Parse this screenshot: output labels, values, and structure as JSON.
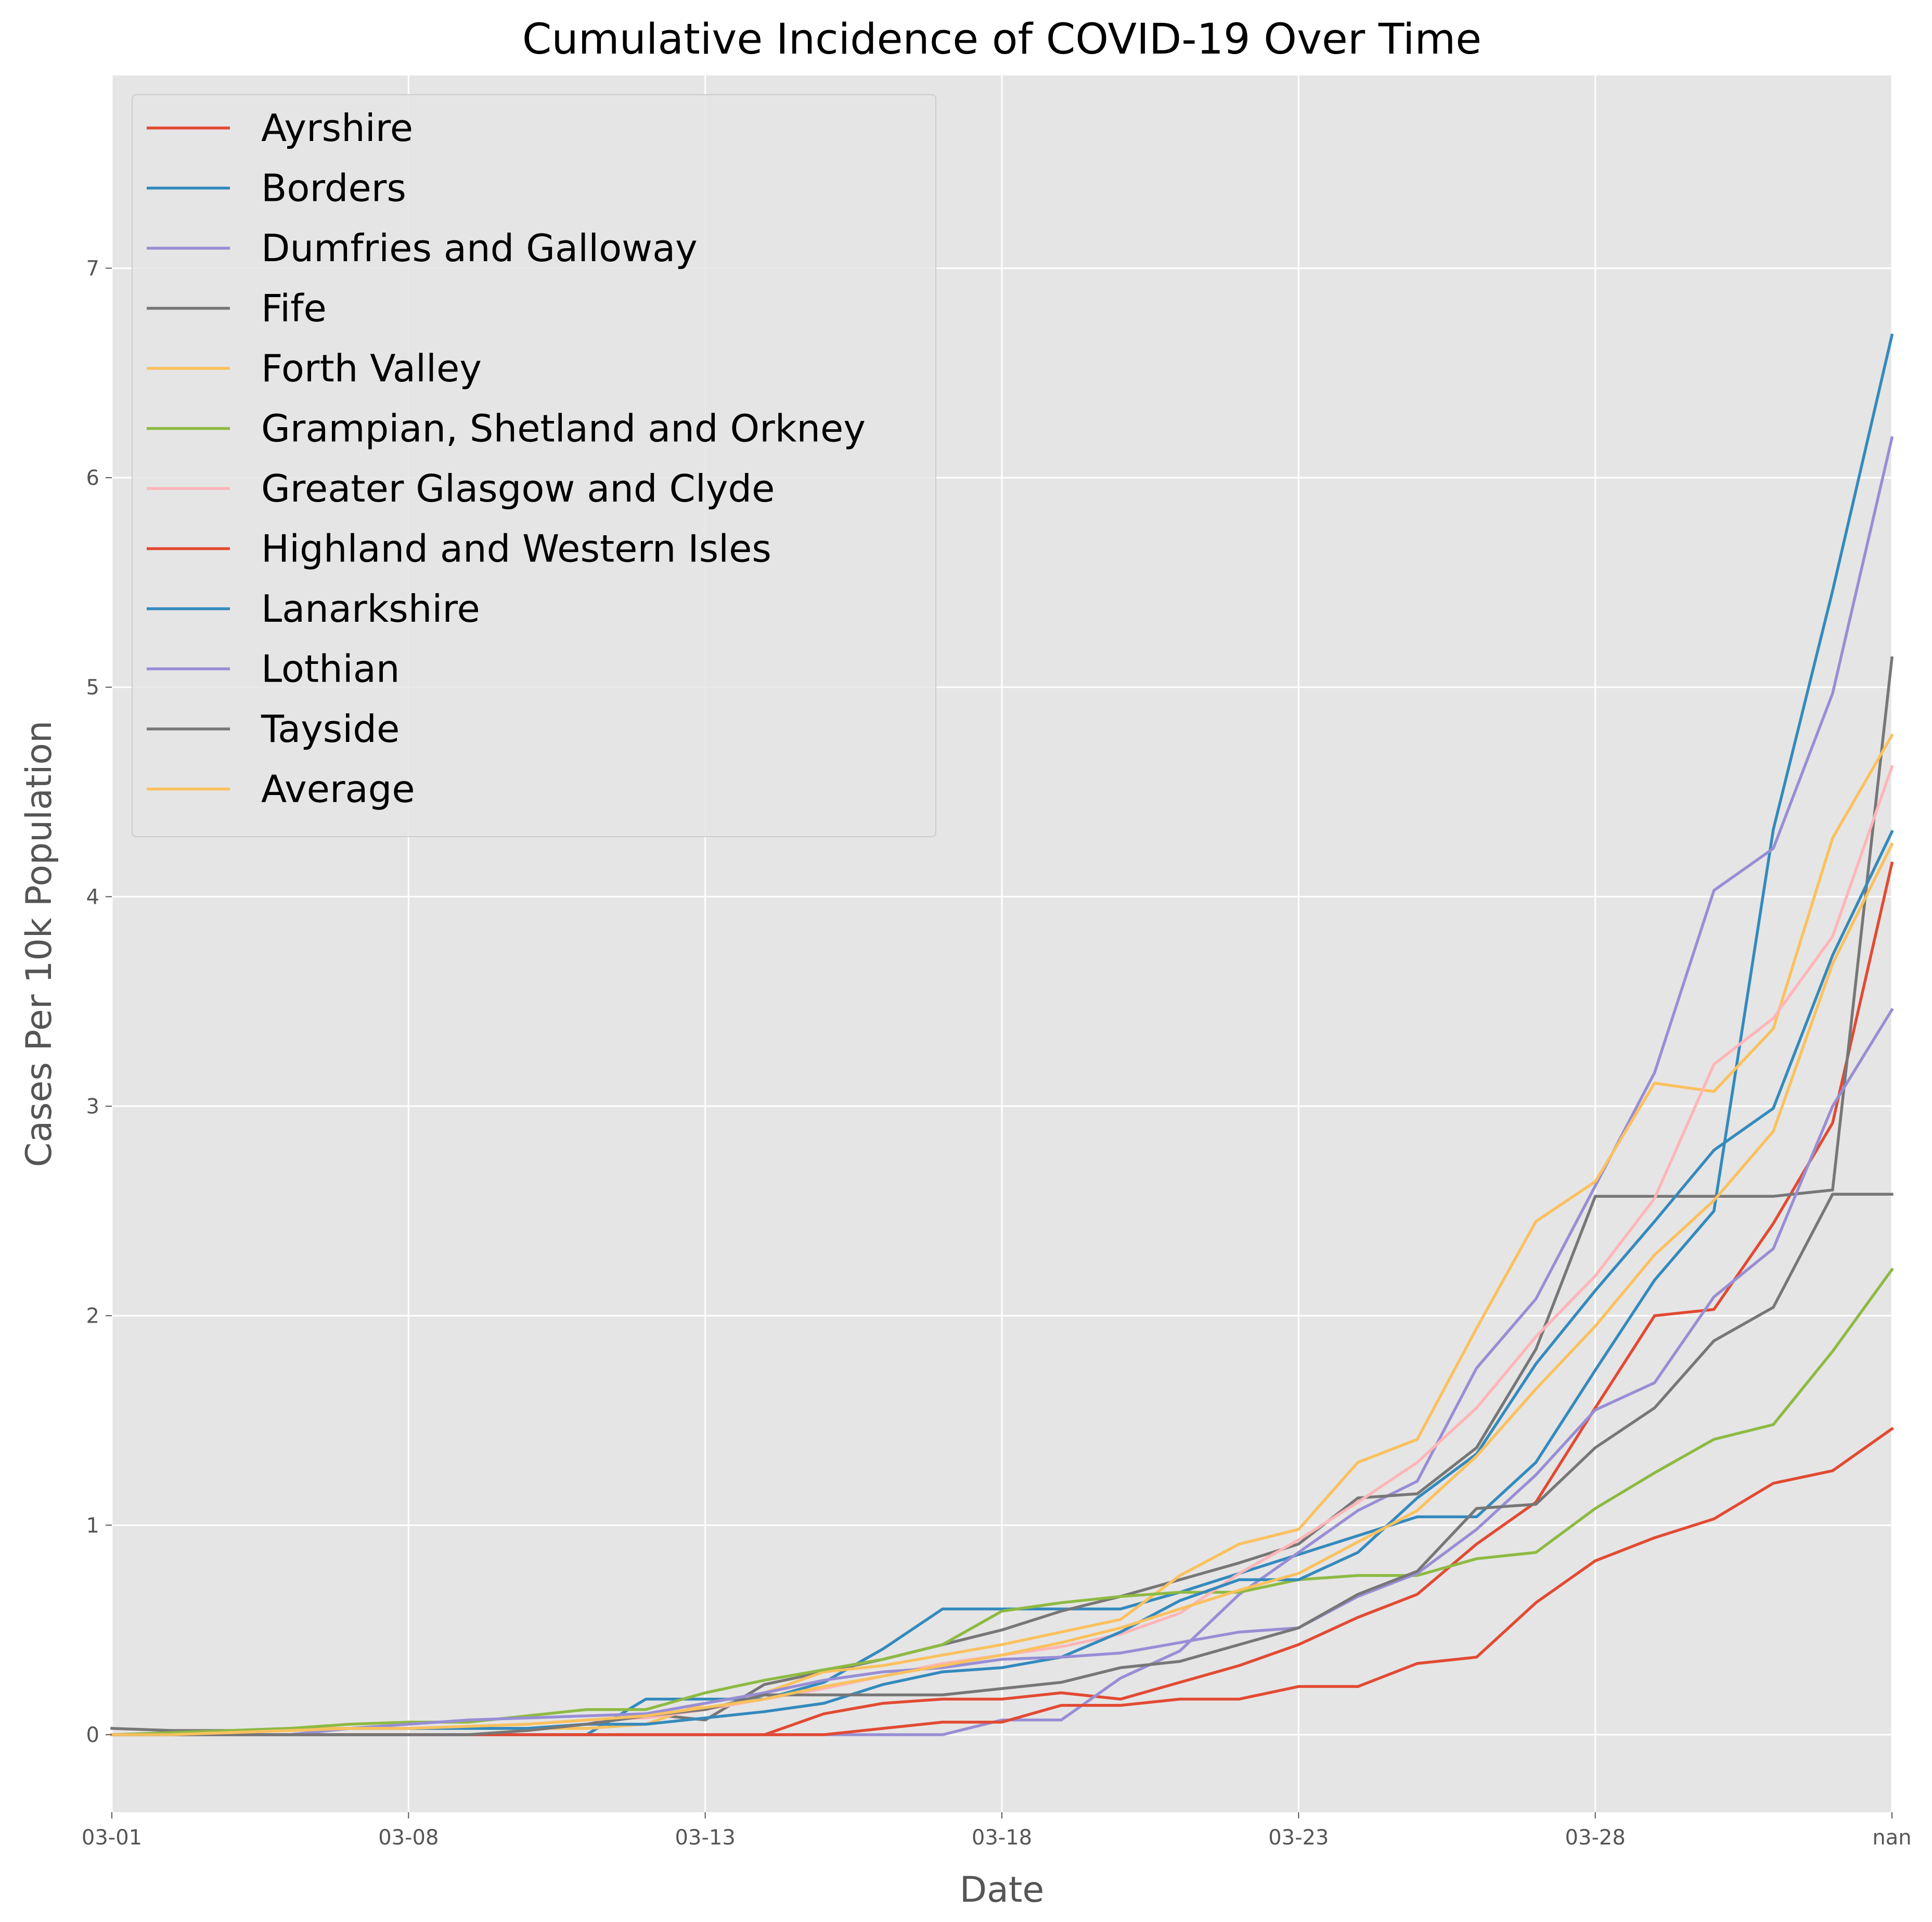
{
  "chart_data": {
    "type": "line",
    "title": "Cumulative Incidence of COVID-19 Over Time",
    "xlabel": "Date",
    "ylabel": "Cases Per 10k Population",
    "x_tick_labels": [
      "03-01",
      "03-08",
      "03-13",
      "03-18",
      "03-23",
      "03-28",
      "nan"
    ],
    "y_ticks": [
      0,
      1,
      2,
      3,
      4,
      5,
      6,
      7
    ],
    "xlim": [
      0,
      30
    ],
    "ylim": [
      -0.37,
      7.92
    ],
    "grid": true,
    "legend_position": "upper-left",
    "x": [
      0,
      1,
      2,
      3,
      4,
      5,
      6,
      7,
      8,
      9,
      10,
      11,
      12,
      13,
      14,
      15,
      16,
      17,
      18,
      19,
      20,
      21,
      22,
      23,
      24,
      25,
      26,
      27,
      28,
      29,
      30
    ],
    "series": [
      {
        "name": "Ayrshire",
        "color": "#E24A33",
        "values": [
          0.0,
          0.0,
          0.0,
          0.0,
          0.0,
          0.0,
          0.0,
          0.0,
          0.0,
          0.0,
          0.0,
          0.0,
          0.1,
          0.15,
          0.17,
          0.17,
          0.2,
          0.17,
          0.25,
          0.33,
          0.43,
          0.56,
          0.67,
          0.91,
          1.11,
          1.56,
          2.0,
          2.03,
          2.44,
          2.92,
          4.16
        ]
      },
      {
        "name": "Borders",
        "color": "#348ABD",
        "values": [
          0.0,
          0.0,
          0.0,
          0.0,
          0.0,
          0.0,
          0.0,
          0.0,
          0.0,
          0.17,
          0.17,
          0.17,
          0.25,
          0.41,
          0.6,
          0.6,
          0.6,
          0.6,
          0.68,
          0.77,
          0.86,
          0.95,
          1.04,
          1.04,
          1.3,
          1.74,
          2.17,
          2.5,
          4.32,
          5.46,
          6.68
        ]
      },
      {
        "name": "Dumfries and Galloway",
        "color": "#988ED5",
        "values": [
          0.0,
          0.0,
          0.0,
          0.0,
          0.0,
          0.0,
          0.0,
          0.0,
          0.0,
          0.0,
          0.0,
          0.0,
          0.0,
          0.0,
          0.0,
          0.07,
          0.07,
          0.27,
          0.4,
          0.67,
          0.87,
          1.07,
          1.21,
          1.75,
          2.08,
          2.62,
          3.16,
          4.03,
          4.23,
          4.97,
          6.19
        ]
      },
      {
        "name": "Fife",
        "color": "#777777",
        "values": [
          0.03,
          0.02,
          0.02,
          0.03,
          0.03,
          0.03,
          0.03,
          0.03,
          0.05,
          0.1,
          0.07,
          0.24,
          0.3,
          0.36,
          0.43,
          0.5,
          0.59,
          0.66,
          0.74,
          0.82,
          0.91,
          1.13,
          1.15,
          1.37,
          1.84,
          2.57,
          2.57,
          2.57,
          2.57,
          2.6,
          5.14
        ]
      },
      {
        "name": "Forth Valley",
        "color": "#FBC15E",
        "values": [
          0.0,
          0.0,
          0.0,
          0.03,
          0.03,
          0.03,
          0.03,
          0.03,
          0.03,
          0.05,
          0.15,
          0.2,
          0.3,
          0.33,
          0.38,
          0.43,
          0.49,
          0.55,
          0.76,
          0.91,
          0.98,
          1.3,
          1.41,
          1.94,
          2.45,
          2.64,
          3.11,
          3.07,
          3.37,
          4.28,
          4.77
        ]
      },
      {
        "name": "Grampian, Shetland and Orkney",
        "color": "#8EBA42",
        "values": [
          0.0,
          0.01,
          0.02,
          0.03,
          0.05,
          0.06,
          0.06,
          0.09,
          0.12,
          0.12,
          0.2,
          0.26,
          0.31,
          0.36,
          0.43,
          0.59,
          0.63,
          0.66,
          0.68,
          0.68,
          0.74,
          0.76,
          0.76,
          0.84,
          0.87,
          1.08,
          1.25,
          1.41,
          1.48,
          1.83,
          2.22
        ]
      },
      {
        "name": "Greater Glasgow and Clyde",
        "color": "#FFB5B8",
        "values": [
          0.0,
          0.0,
          0.01,
          0.02,
          0.03,
          0.03,
          0.04,
          0.05,
          0.07,
          0.08,
          0.12,
          0.17,
          0.22,
          0.28,
          0.34,
          0.38,
          0.42,
          0.48,
          0.58,
          0.77,
          0.93,
          1.11,
          1.3,
          1.56,
          1.9,
          2.19,
          2.56,
          3.2,
          3.42,
          3.81,
          4.62
        ]
      },
      {
        "name": "Highland and Western Isles",
        "color": "#E24A33",
        "values": [
          0.0,
          0.0,
          0.0,
          0.0,
          0.0,
          0.0,
          0.0,
          0.0,
          0.0,
          0.0,
          0.0,
          0.0,
          0.0,
          0.03,
          0.06,
          0.06,
          0.14,
          0.14,
          0.17,
          0.17,
          0.23,
          0.23,
          0.34,
          0.37,
          0.63,
          0.83,
          0.94,
          1.03,
          1.2,
          1.26,
          1.46
        ]
      },
      {
        "name": "Lanarkshire",
        "color": "#348ABD",
        "values": [
          0.0,
          0.0,
          0.0,
          0.0,
          0.03,
          0.03,
          0.03,
          0.03,
          0.05,
          0.05,
          0.08,
          0.11,
          0.15,
          0.24,
          0.3,
          0.32,
          0.37,
          0.49,
          0.64,
          0.74,
          0.74,
          0.87,
          1.13,
          1.34,
          1.77,
          2.12,
          2.45,
          2.79,
          2.99,
          3.72,
          4.31
        ]
      },
      {
        "name": "Lothian",
        "color": "#988ED5",
        "values": [
          0.0,
          0.0,
          0.0,
          0.0,
          0.03,
          0.05,
          0.07,
          0.08,
          0.09,
          0.1,
          0.15,
          0.2,
          0.26,
          0.3,
          0.32,
          0.36,
          0.37,
          0.39,
          0.44,
          0.49,
          0.51,
          0.66,
          0.77,
          0.98,
          1.24,
          1.55,
          1.68,
          2.09,
          2.32,
          3.0,
          3.46
        ]
      },
      {
        "name": "Tayside",
        "color": "#777777",
        "values": [
          0.0,
          0.0,
          0.0,
          0.0,
          0.0,
          0.0,
          0.0,
          0.02,
          0.05,
          0.09,
          0.12,
          0.19,
          0.19,
          0.19,
          0.19,
          0.22,
          0.25,
          0.32,
          0.35,
          0.43,
          0.51,
          0.67,
          0.78,
          1.08,
          1.1,
          1.37,
          1.56,
          1.88,
          2.04,
          2.58,
          2.58
        ]
      },
      {
        "name": "Average",
        "color": "#FBC15E",
        "values": [
          0.0,
          0.0,
          0.01,
          0.02,
          0.03,
          0.03,
          0.04,
          0.05,
          0.07,
          0.09,
          0.13,
          0.17,
          0.23,
          0.28,
          0.33,
          0.38,
          0.44,
          0.51,
          0.6,
          0.69,
          0.77,
          0.92,
          1.07,
          1.33,
          1.65,
          1.95,
          2.29,
          2.55,
          2.88,
          3.68,
          4.25
        ]
      }
    ]
  }
}
